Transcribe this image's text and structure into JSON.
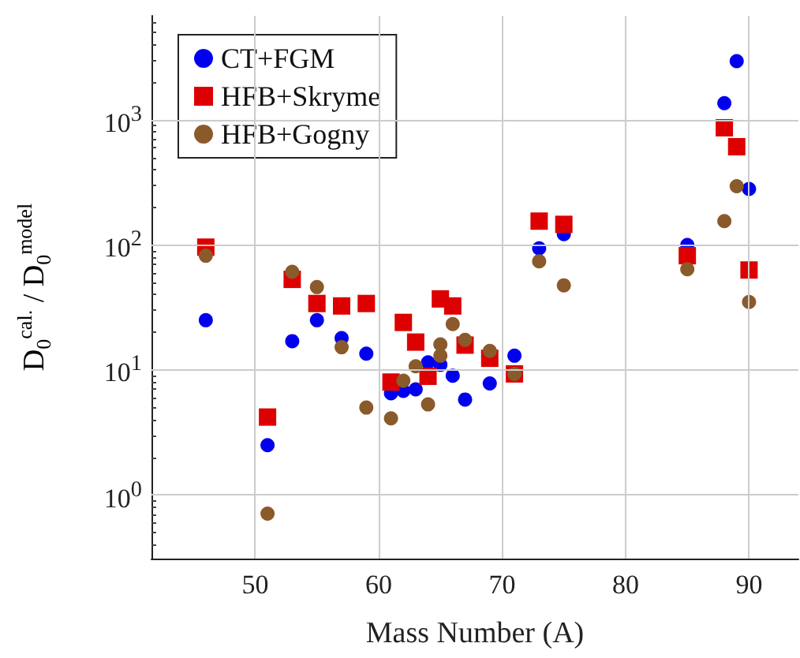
{
  "chart_data": {
    "type": "scatter",
    "xlabel": "Mass Number (A)",
    "ylabel": "D$_{0}$$^{cal.}$ / D$_{0}$$^{model}$",
    "xlim": [
      41.6,
      94
    ],
    "xticks": [
      50,
      60,
      70,
      80,
      90
    ],
    "ylim": [
      0.31,
      6800
    ],
    "yticks": [
      {
        "value": 1,
        "label": "10$^{0}$"
      },
      {
        "value": 10,
        "label": "10$^{1}$"
      },
      {
        "value": 100,
        "label": "10$^{2}$"
      },
      {
        "value": 1000,
        "label": "10$^{3}$"
      }
    ],
    "log": "y",
    "grid": true,
    "legend": "top left",
    "series": [
      {
        "name": "CT+FGM",
        "color": "#0000ee",
        "marker": "circle",
        "x": [
          46,
          51,
          53,
          55,
          57,
          59,
          61,
          62,
          63,
          64,
          65,
          66,
          67,
          69,
          71,
          73,
          75,
          85,
          88,
          89,
          90
        ],
        "values": [
          25,
          2.5,
          17,
          25,
          18,
          13.5,
          6.5,
          6.8,
          7,
          11.5,
          11,
          9,
          5.8,
          7.8,
          13,
          94,
          122,
          100,
          1360,
          2950,
          280
        ]
      },
      {
        "name": "HFB+Skryme",
        "color": "#dd0000",
        "marker": "square",
        "x": [
          46,
          51,
          53,
          55,
          57,
          59,
          61,
          62,
          63,
          64,
          65,
          66,
          67,
          69,
          71,
          73,
          75,
          85,
          88,
          89,
          90
        ],
        "values": [
          96,
          4.2,
          53,
          34,
          32.5,
          34,
          8,
          24,
          16.7,
          8.9,
          37,
          32.5,
          15.8,
          12.4,
          9.3,
          155,
          146,
          82,
          865,
          610,
          63
        ]
      },
      {
        "name": "HFB+Gogny",
        "color": "#8b5a2b",
        "marker": "circle",
        "x": [
          46,
          51,
          53,
          55,
          57,
          59,
          61,
          62,
          63,
          64,
          65,
          65,
          66,
          67,
          69,
          71,
          73,
          75,
          85,
          88,
          89,
          90
        ],
        "values": [
          82,
          0.71,
          61,
          46,
          15.2,
          5,
          4.1,
          8.2,
          10.7,
          5.3,
          16,
          13,
          23.3,
          17.4,
          14.2,
          9.3,
          74,
          47.5,
          64,
          155,
          295,
          35
        ]
      }
    ]
  }
}
